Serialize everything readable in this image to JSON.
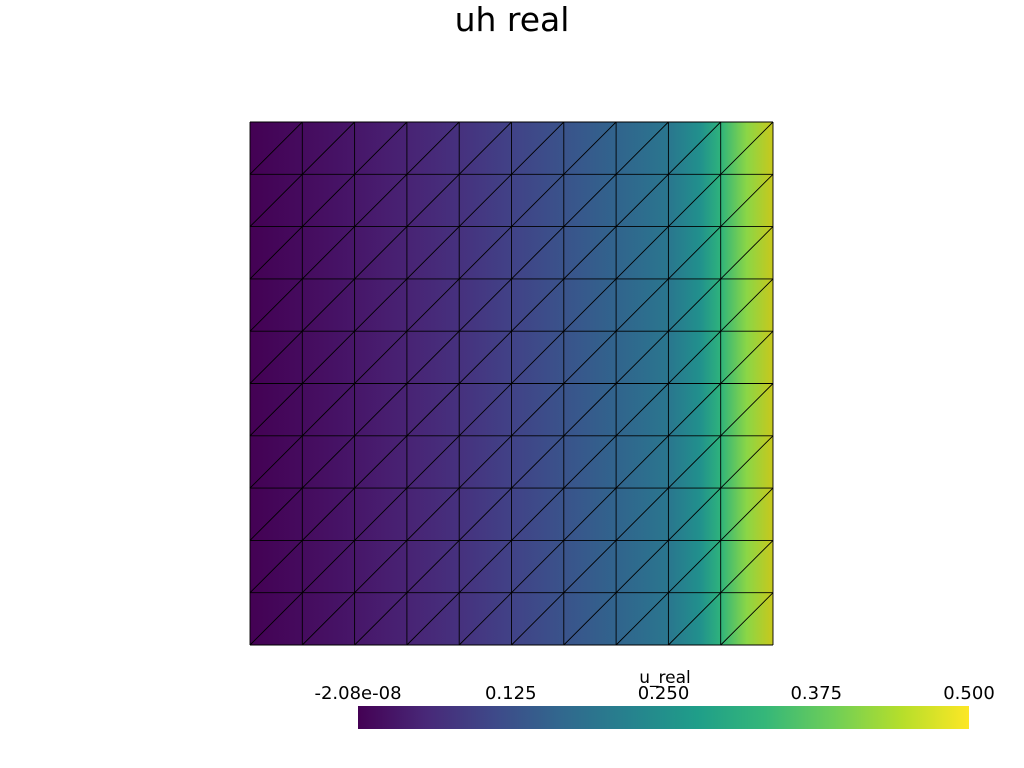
{
  "title": "uh real",
  "plot": {
    "mesh_divisions": [
      10,
      10
    ],
    "field_min": -2.08e-08,
    "field_max": 0.5,
    "colormap": "viridis",
    "colormap_stops": [
      "#440154",
      "#482878",
      "#3e4989",
      "#31688e",
      "#26828e",
      "#1f9e89",
      "#35b779",
      "#6ece58",
      "#b5de2b",
      "#fde725"
    ],
    "edge_color": "#000000"
  },
  "colorbar": {
    "title": "u_real",
    "ticks": [
      {
        "label": "-2.08e-08",
        "value": -2.08e-08
      },
      {
        "label": "0.125",
        "value": 0.125
      },
      {
        "label": "0.250",
        "value": 0.25
      },
      {
        "label": "0.375",
        "value": 0.375
      },
      {
        "label": "0.500",
        "value": 0.5
      }
    ]
  }
}
